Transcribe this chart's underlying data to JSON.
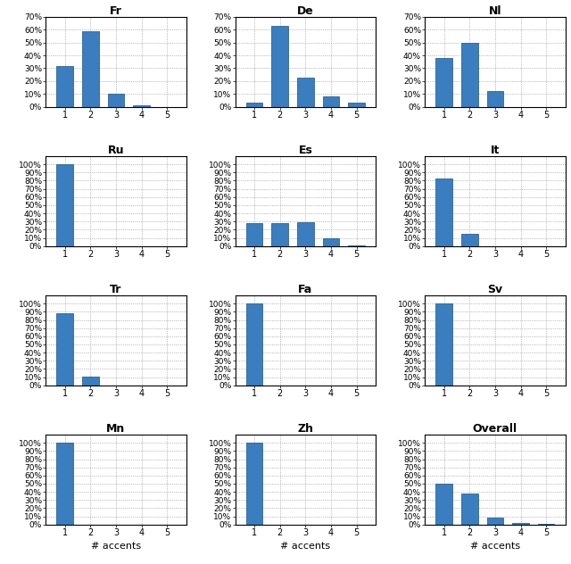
{
  "subplots": [
    {
      "title": "Fr",
      "values": [
        32,
        59,
        10,
        1,
        0
      ],
      "ylim": [
        0,
        70
      ],
      "yticks": [
        0,
        10,
        20,
        30,
        40,
        50,
        60,
        70
      ],
      "show_xlabel": false
    },
    {
      "title": "De",
      "values": [
        3,
        63,
        23,
        8,
        3
      ],
      "ylim": [
        0,
        70
      ],
      "yticks": [
        0,
        10,
        20,
        30,
        40,
        50,
        60,
        70
      ],
      "show_xlabel": false
    },
    {
      "title": "Nl",
      "values": [
        38,
        50,
        12,
        0,
        0
      ],
      "ylim": [
        0,
        70
      ],
      "yticks": [
        0,
        10,
        20,
        30,
        40,
        50,
        60,
        70
      ],
      "show_xlabel": false
    },
    {
      "title": "Ru",
      "values": [
        100,
        0,
        0,
        0,
        0
      ],
      "ylim": [
        0,
        110
      ],
      "yticks": [
        0,
        10,
        20,
        30,
        40,
        50,
        60,
        70,
        80,
        90,
        100
      ],
      "show_xlabel": false
    },
    {
      "title": "Es",
      "values": [
        28,
        28,
        29,
        10,
        1
      ],
      "ylim": [
        0,
        110
      ],
      "yticks": [
        0,
        10,
        20,
        30,
        40,
        50,
        60,
        70,
        80,
        90,
        100
      ],
      "show_xlabel": false
    },
    {
      "title": "It",
      "values": [
        83,
        15,
        0,
        0,
        0
      ],
      "ylim": [
        0,
        110
      ],
      "yticks": [
        0,
        10,
        20,
        30,
        40,
        50,
        60,
        70,
        80,
        90,
        100
      ],
      "show_xlabel": false
    },
    {
      "title": "Tr",
      "values": [
        88,
        11,
        0,
        0,
        0
      ],
      "ylim": [
        0,
        110
      ],
      "yticks": [
        0,
        10,
        20,
        30,
        40,
        50,
        60,
        70,
        80,
        90,
        100
      ],
      "show_xlabel": false
    },
    {
      "title": "Fa",
      "values": [
        100,
        0,
        0,
        0,
        0
      ],
      "ylim": [
        0,
        110
      ],
      "yticks": [
        0,
        10,
        20,
        30,
        40,
        50,
        60,
        70,
        80,
        90,
        100
      ],
      "show_xlabel": false
    },
    {
      "title": "Sv",
      "values": [
        100,
        0,
        0,
        0,
        0
      ],
      "ylim": [
        0,
        110
      ],
      "yticks": [
        0,
        10,
        20,
        30,
        40,
        50,
        60,
        70,
        80,
        90,
        100
      ],
      "show_xlabel": false
    },
    {
      "title": "Mn",
      "values": [
        100,
        0,
        0,
        0,
        0
      ],
      "ylim": [
        0,
        110
      ],
      "yticks": [
        0,
        10,
        20,
        30,
        40,
        50,
        60,
        70,
        80,
        90,
        100
      ],
      "show_xlabel": true
    },
    {
      "title": "Zh",
      "values": [
        100,
        0,
        0,
        0,
        0
      ],
      "ylim": [
        0,
        110
      ],
      "yticks": [
        0,
        10,
        20,
        30,
        40,
        50,
        60,
        70,
        80,
        90,
        100
      ],
      "show_xlabel": true
    },
    {
      "title": "Overall",
      "values": [
        50,
        38,
        9,
        2,
        0.5
      ],
      "ylim": [
        0,
        110
      ],
      "yticks": [
        0,
        10,
        20,
        30,
        40,
        50,
        60,
        70,
        80,
        90,
        100
      ],
      "show_xlabel": true
    }
  ],
  "bar_color": "#3a7ebf",
  "bar_edge_color": "#1c5080",
  "xlabel": "# accents",
  "grid_color": "#888888",
  "x_categories": [
    1,
    2,
    3,
    4,
    5
  ],
  "bar_width": 0.65
}
